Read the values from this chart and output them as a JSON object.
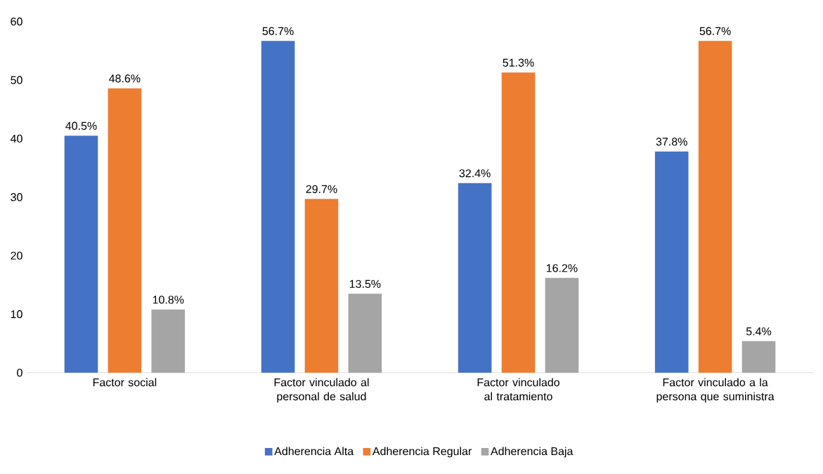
{
  "chart_data": {
    "type": "bar",
    "categories": [
      "Factor social",
      "Factor vinculado al personal de salud",
      "Factor vinculado al tratamiento",
      "Factor vinculado a la persona que suministra"
    ],
    "series": [
      {
        "name": "Adherencia Alta",
        "color": "#4472c4",
        "values": [
          40.5,
          56.7,
          32.4,
          37.8
        ],
        "value_labels": [
          "40.5%",
          "56.7%",
          "32.4%",
          "37.8%"
        ]
      },
      {
        "name": "Adherencia Regular",
        "color": "#ed7d31",
        "values": [
          48.6,
          29.7,
          51.3,
          56.7
        ],
        "value_labels": [
          "48.6%",
          "29.7%",
          "51.3%",
          "56.7%"
        ]
      },
      {
        "name": "Adherencia Baja",
        "color": "#a5a5a5",
        "values": [
          10.8,
          13.5,
          16.2,
          5.4
        ],
        "value_labels": [
          "10.8%",
          "13.5%",
          "16.2%",
          "5.4%"
        ]
      }
    ],
    "ylim": [
      0,
      60
    ],
    "yticks": [
      0,
      10,
      20,
      30,
      40,
      50,
      60
    ],
    "grid": false,
    "legend": "bottom"
  }
}
